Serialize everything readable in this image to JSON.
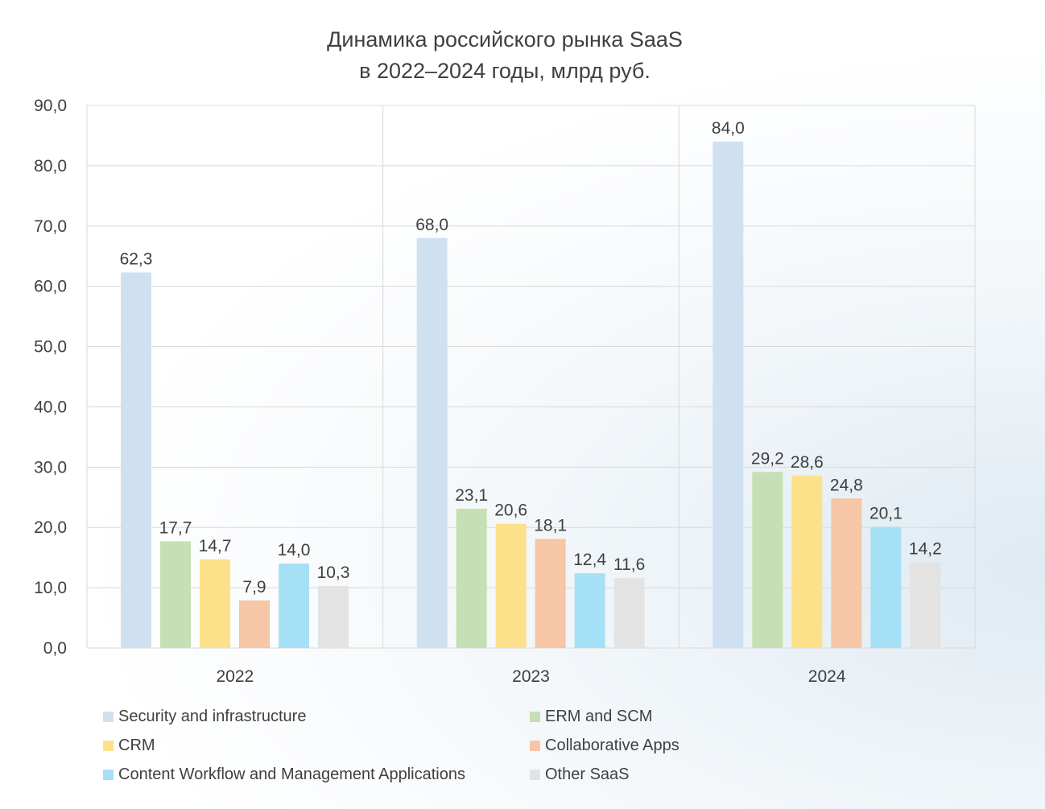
{
  "chart_data": {
    "type": "bar",
    "title_line1": "Динамика российского рынка SaaS",
    "title_line2": "в 2022–2024 годы, млрд руб.",
    "categories": [
      "2022",
      "2023",
      "2024"
    ],
    "ylim": [
      0,
      90
    ],
    "yticks": [
      "0,0",
      "10,0",
      "20,0",
      "30,0",
      "40,0",
      "50,0",
      "60,0",
      "70,0",
      "80,0",
      "90,0"
    ],
    "grid": true,
    "legend_position": "bottom",
    "series": [
      {
        "name": "Security and infrastructure",
        "color": "#cfe1f1",
        "values": [
          62.3,
          68.0,
          84.0
        ]
      },
      {
        "name": "ERM and SCM",
        "color": "#c5e0b4",
        "values": [
          17.7,
          23.1,
          29.2
        ]
      },
      {
        "name": "CRM",
        "color": "#fde08a",
        "values": [
          14.7,
          20.6,
          28.6
        ]
      },
      {
        "name": "Collaborative Apps",
        "color": "#f6c6a6",
        "values": [
          7.9,
          18.1,
          24.8
        ]
      },
      {
        "name": "Content Workflow and Management Applications",
        "color": "#a6e0f6",
        "values": [
          14.0,
          12.4,
          20.1
        ]
      },
      {
        "name": "Other SaaS",
        "color": "#e3e3e3",
        "values": [
          10.3,
          11.6,
          14.2
        ]
      }
    ]
  }
}
